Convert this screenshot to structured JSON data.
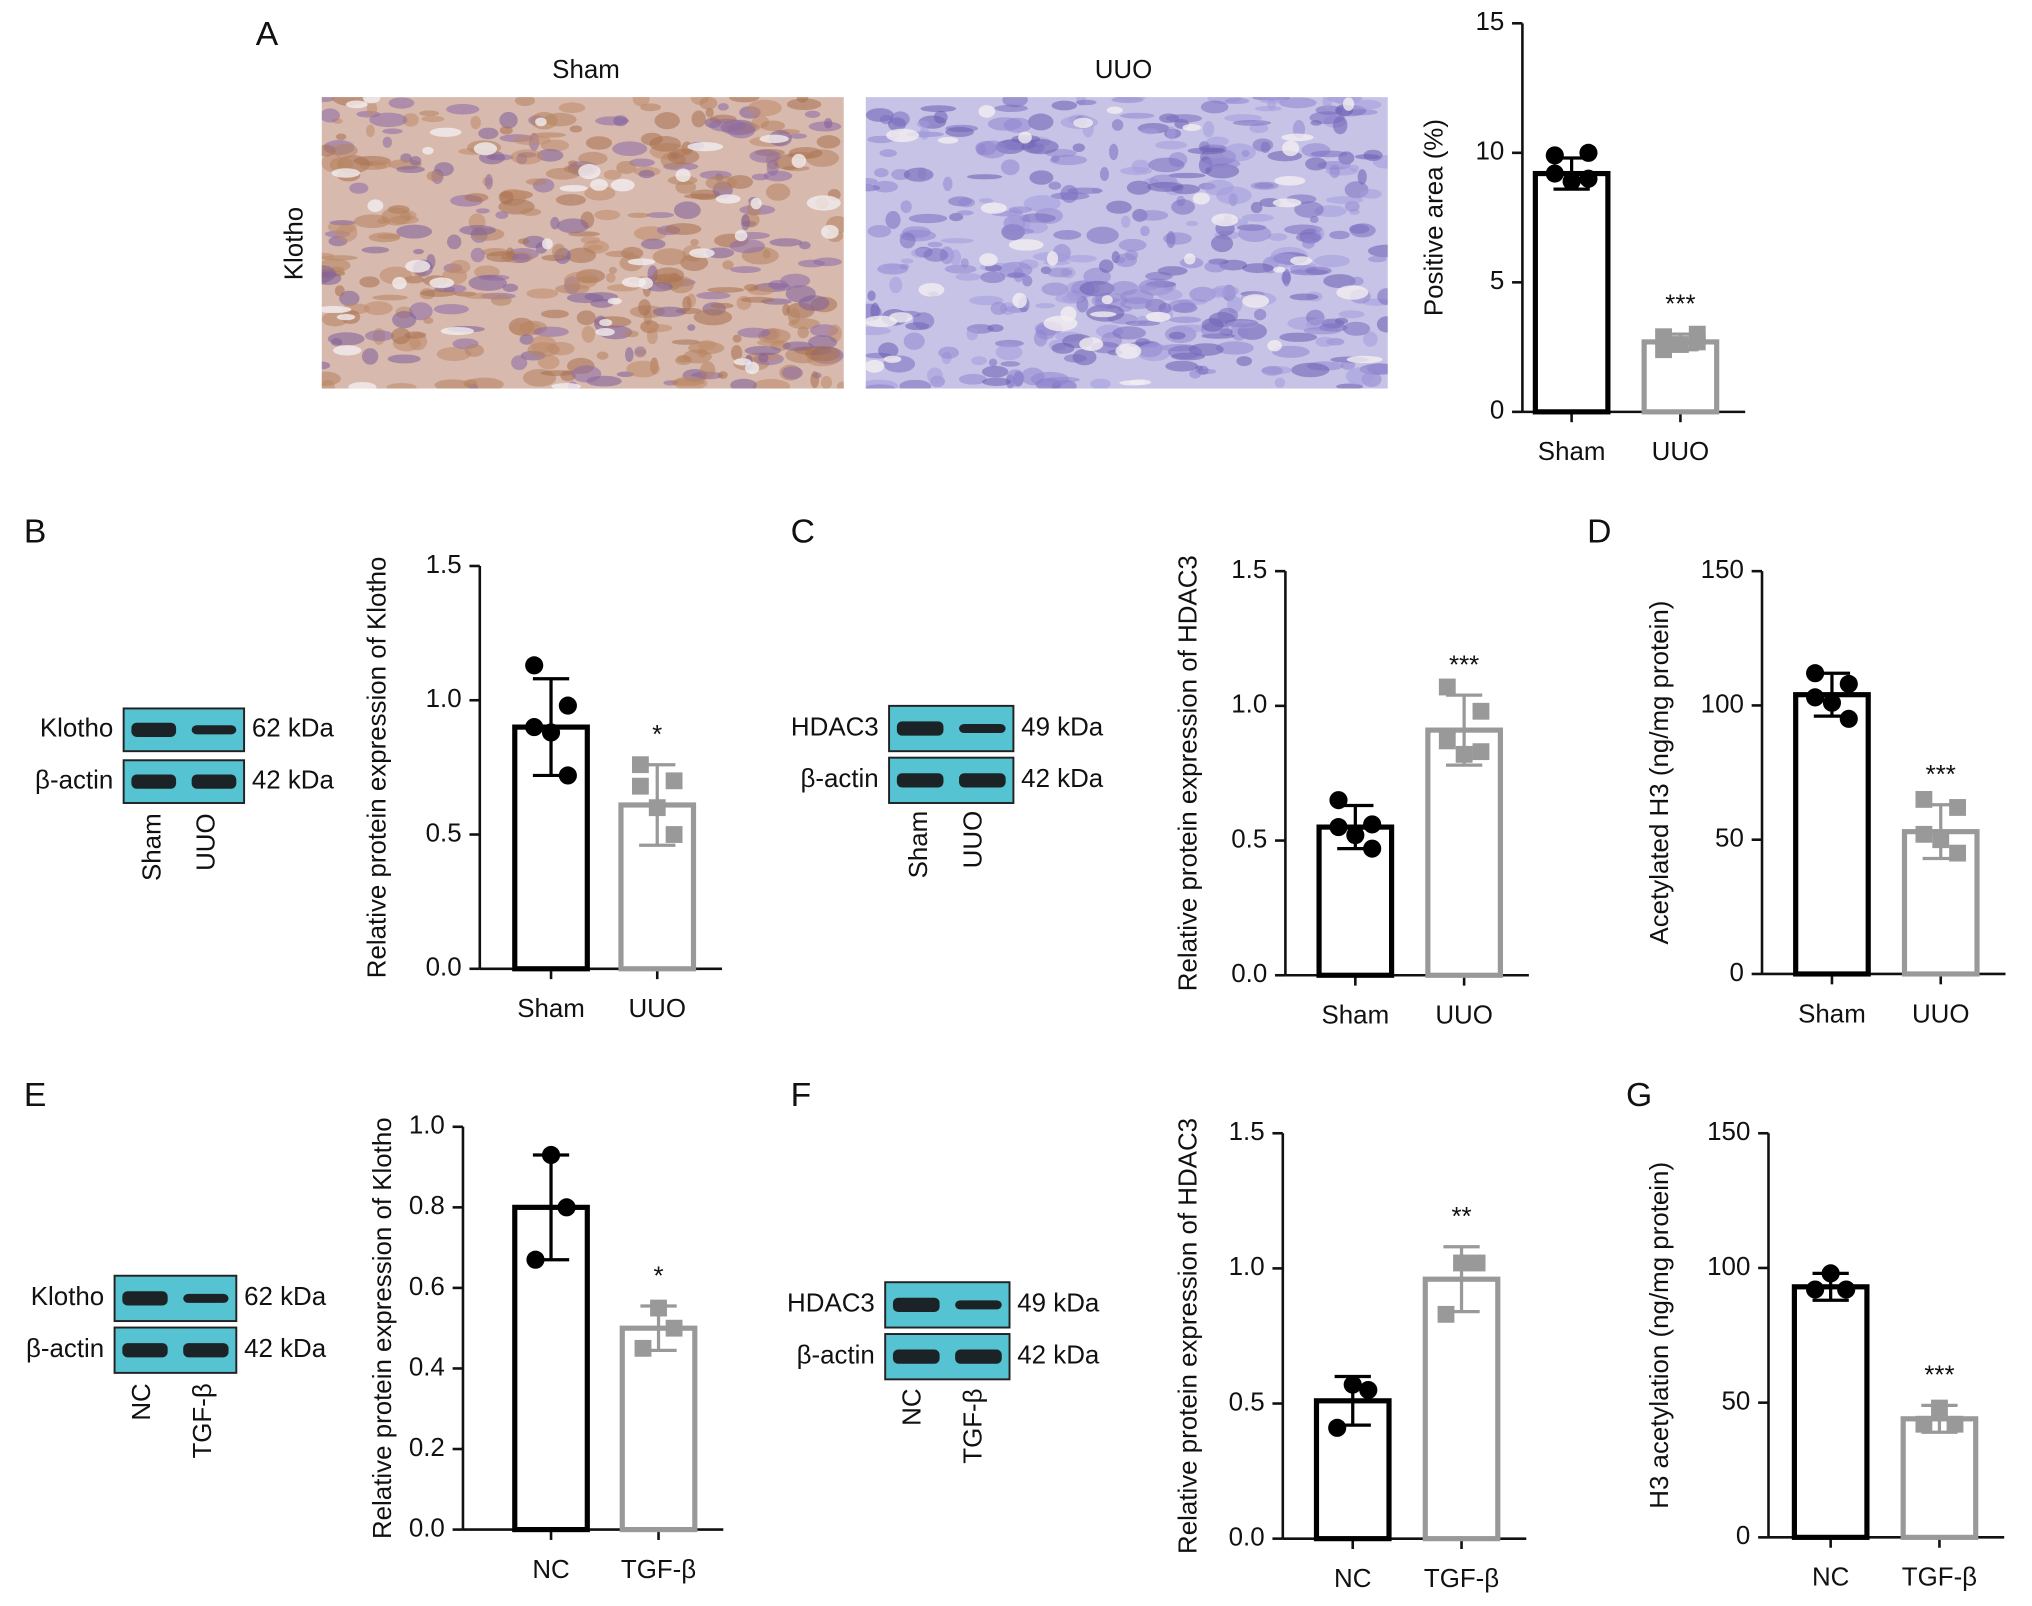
{
  "chart_data": [
    {
      "type": "bar",
      "panel": "A",
      "image_labels": [
        "Sham",
        "UUO"
      ],
      "image_row_label": "Klotho",
      "ylabel": "Positive area (%)",
      "categories": [
        "Sham",
        "UUO"
      ],
      "values": [
        9.2,
        2.7
      ],
      "errors": [
        0.6,
        0.3
      ],
      "points": [
        [
          9.9,
          10.0,
          9.2,
          8.9,
          9.0
        ],
        [
          2.9,
          3.0,
          2.4,
          2.6,
          2.7
        ]
      ],
      "significance": [
        null,
        "***"
      ],
      "colors": [
        "#000000",
        "#999999"
      ],
      "ylim": [
        0,
        15
      ],
      "yticks": [
        0,
        5,
        10,
        15
      ]
    },
    {
      "type": "bar",
      "panel": "B",
      "blot": {
        "bands": [
          {
            "name": "Klotho",
            "size": "62 kDa"
          },
          {
            "name": "β-actin",
            "size": "42 kDa"
          }
        ],
        "lanes": [
          "Sham",
          "UUO"
        ]
      },
      "ylabel": "Relative protein expression of Klotho",
      "categories": [
        "Sham",
        "UUO"
      ],
      "values": [
        0.9,
        0.61
      ],
      "errors": [
        0.18,
        0.15
      ],
      "points": [
        [
          1.13,
          0.98,
          0.9,
          0.88,
          0.72
        ],
        [
          0.76,
          0.7,
          0.68,
          0.6,
          0.5
        ]
      ],
      "significance": [
        null,
        "*"
      ],
      "colors": [
        "#000000",
        "#999999"
      ],
      "ylim": [
        0,
        1.5
      ],
      "yticks": [
        {
          "value": 0,
          "label": "0.0"
        },
        0.5,
        {
          "value": 1,
          "label": "1.0"
        },
        1.5
      ]
    },
    {
      "type": "bar",
      "panel": "C",
      "blot": {
        "bands": [
          {
            "name": "HDAC3",
            "size": "49 kDa"
          },
          {
            "name": "β-actin",
            "size": "42 kDa"
          }
        ],
        "lanes": [
          "Sham",
          "UUO"
        ]
      },
      "ylabel": "Relative protein expression of HDAC3",
      "categories": [
        "Sham",
        "UUO"
      ],
      "values": [
        0.55,
        0.91
      ],
      "errors": [
        0.08,
        0.13
      ],
      "points": [
        [
          0.65,
          0.56,
          0.55,
          0.52,
          0.47
        ],
        [
          1.07,
          0.98,
          0.87,
          0.82,
          0.83
        ]
      ],
      "significance": [
        null,
        "***"
      ],
      "colors": [
        "#000000",
        "#999999"
      ],
      "ylim": [
        0,
        1.5
      ],
      "yticks": [
        {
          "value": 0,
          "label": "0.0"
        },
        0.5,
        {
          "value": 1,
          "label": "1.0"
        },
        1.5
      ]
    },
    {
      "type": "bar",
      "panel": "D",
      "ylabel": "Acetylated H3 (ng/mg protein)",
      "categories": [
        "Sham",
        "UUO"
      ],
      "values": [
        104,
        53
      ],
      "errors": [
        8,
        10
      ],
      "points": [
        [
          112,
          108,
          103,
          101,
          95
        ],
        [
          65,
          62,
          52,
          50,
          45
        ]
      ],
      "significance": [
        null,
        "***"
      ],
      "colors": [
        "#000000",
        "#999999"
      ],
      "ylim": [
        0,
        150
      ],
      "yticks": [
        0,
        50,
        100,
        150
      ]
    },
    {
      "type": "bar",
      "panel": "E",
      "blot": {
        "bands": [
          {
            "name": "Klotho",
            "size": "62 kDa"
          },
          {
            "name": "β-actin",
            "size": "42 kDa"
          }
        ],
        "lanes": [
          "NC",
          "TGF-β"
        ]
      },
      "ylabel": "Relative protein expression of Klotho",
      "categories": [
        "NC",
        "TGF-β"
      ],
      "values": [
        0.8,
        0.5
      ],
      "errors": [
        0.13,
        0.055
      ],
      "points": [
        [
          0.93,
          0.8,
          0.67
        ],
        [
          0.55,
          0.5,
          0.45
        ]
      ],
      "significance": [
        null,
        "*"
      ],
      "colors": [
        "#000000",
        "#999999"
      ],
      "ylim": [
        0,
        1.0
      ],
      "yticks": [
        {
          "value": 0,
          "label": "0.0"
        },
        0.2,
        0.4,
        0.6,
        0.8,
        {
          "value": 1,
          "label": "1.0"
        }
      ]
    },
    {
      "type": "bar",
      "panel": "F",
      "blot": {
        "bands": [
          {
            "name": "HDAC3",
            "size": "49 kDa"
          },
          {
            "name": "β-actin",
            "size": "42 kDa"
          }
        ],
        "lanes": [
          "NC",
          "TGF-β"
        ]
      },
      "ylabel": "Relative protein expression of HDAC3",
      "categories": [
        "NC",
        "TGF-β"
      ],
      "values": [
        0.51,
        0.96
      ],
      "errors": [
        0.09,
        0.12
      ],
      "points": [
        [
          0.57,
          0.55,
          0.41
        ],
        [
          1.02,
          1.02,
          0.83
        ]
      ],
      "significance": [
        null,
        "**"
      ],
      "colors": [
        "#000000",
        "#999999"
      ],
      "ylim": [
        0,
        1.5
      ],
      "yticks": [
        {
          "value": 0,
          "label": "0.0"
        },
        0.5,
        {
          "value": 1,
          "label": "1.0"
        },
        1.5
      ]
    },
    {
      "type": "bar",
      "panel": "G",
      "ylabel": "H3 acetylation (ng/mg protein)",
      "categories": [
        "NC",
        "TGF-β"
      ],
      "values": [
        93,
        44
      ],
      "errors": [
        5,
        5
      ],
      "points": [
        [
          98,
          92,
          92
        ],
        [
          48,
          42,
          42
        ]
      ],
      "significance": [
        null,
        "***"
      ],
      "colors": [
        "#000000",
        "#999999"
      ],
      "ylim": [
        0,
        150
      ],
      "yticks": [
        0,
        50,
        100,
        150
      ]
    }
  ]
}
